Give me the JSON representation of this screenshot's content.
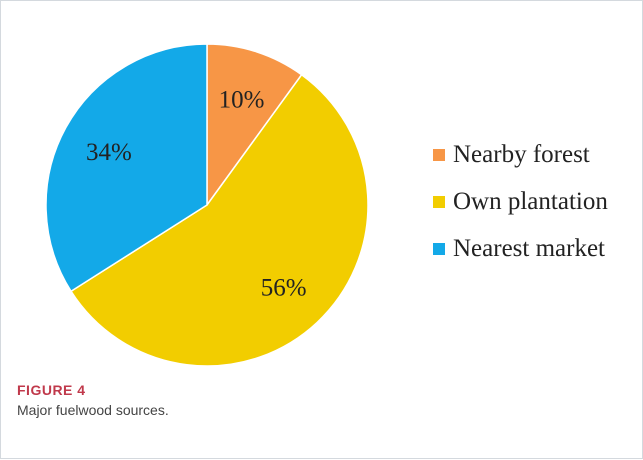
{
  "chart_data": {
    "type": "pie",
    "slices": [
      {
        "label": "Nearby forest",
        "value": 10,
        "value_label": "10%",
        "color": "#f79646"
      },
      {
        "label": "Own plantation",
        "value": 56,
        "value_label": "56%",
        "color": "#f2cd00"
      },
      {
        "label": "Nearest market",
        "value": 34,
        "value_label": "34%",
        "color": "#13a9e8"
      }
    ],
    "legend_position": "right",
    "start_angle": "12 o'clock, clockwise"
  },
  "caption": {
    "figure_number": "FIGURE 4",
    "text": "Major fuelwood sources."
  }
}
